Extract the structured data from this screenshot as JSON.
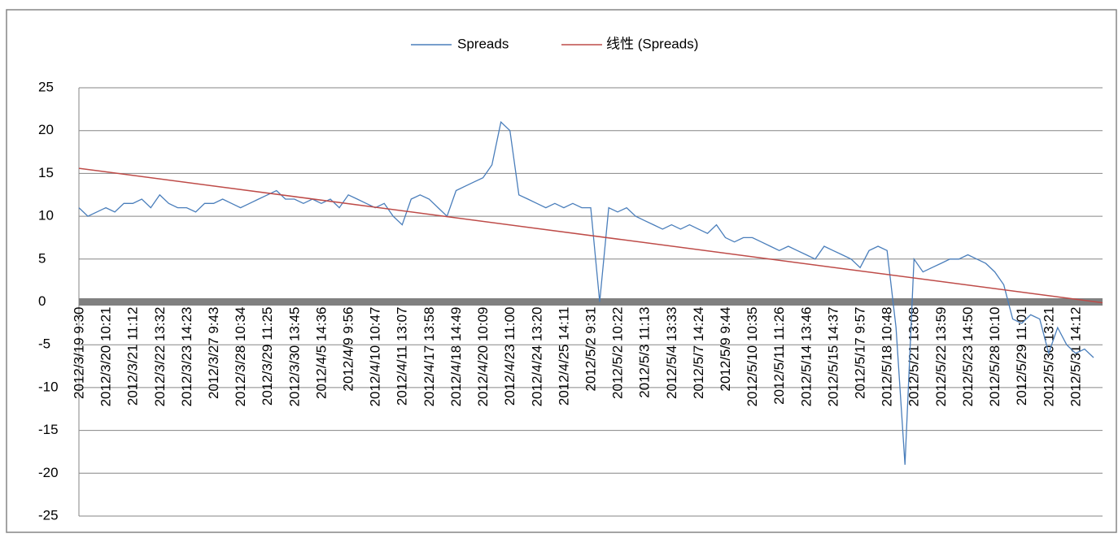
{
  "chart_data": {
    "type": "line",
    "categories": [
      "2012/3/19 9:30",
      null,
      null,
      "2012/3/20 10:21",
      null,
      null,
      "2012/3/21 11:12",
      null,
      null,
      "2012/3/22 13:32",
      null,
      null,
      "2012/3/23 14:23",
      null,
      null,
      "2012/3/27 9:43",
      null,
      null,
      "2012/3/28 10:34",
      null,
      null,
      "2012/3/29 11:25",
      null,
      null,
      "2012/3/30 13:45",
      null,
      null,
      "2012/4/5 14:36",
      null,
      null,
      "2012/4/9 9:56",
      null,
      null,
      "2012/4/10 10:47",
      null,
      null,
      "2012/4/11 13:07",
      null,
      null,
      "2012/4/17 13:58",
      null,
      null,
      "2012/4/18 14:49",
      null,
      null,
      "2012/4/20 10:09",
      null,
      null,
      "2012/4/23 11:00",
      null,
      null,
      "2012/4/24 13:20",
      null,
      null,
      "2012/4/25 14:11",
      null,
      null,
      "2012/5/2 9:31",
      null,
      null,
      "2012/5/2 10:22",
      null,
      null,
      "2012/5/3 11:13",
      null,
      null,
      "2012/5/4 13:33",
      null,
      null,
      "2012/5/7 14:24",
      null,
      null,
      "2012/5/9 9:44",
      null,
      null,
      "2012/5/10 10:35",
      null,
      null,
      "2012/5/11 11:26",
      null,
      null,
      "2012/5/14 13:46",
      null,
      null,
      "2012/5/15 14:37",
      null,
      null,
      "2012/5/17 9:57",
      null,
      null,
      "2012/5/18 10:48",
      null,
      null,
      "2012/5/21 13:08",
      null,
      null,
      "2012/5/22 13:59",
      null,
      null,
      "2012/5/23 14:50",
      null,
      null,
      "2012/5/28 10:10",
      null,
      null,
      "2012/5/29 11:01",
      null,
      null,
      "2012/5/30 13:21",
      null,
      null,
      "2012/5/31 14:12",
      null,
      null
    ],
    "series": [
      {
        "name": "Spreads",
        "color": "#4a7ebb",
        "values": [
          11,
          10,
          10.5,
          11,
          10.5,
          11.5,
          11.5,
          12,
          11,
          12.5,
          11.5,
          11,
          11,
          10.5,
          11.5,
          11.5,
          12,
          11.5,
          11,
          11.5,
          12,
          12.5,
          13,
          12,
          12,
          11.5,
          12,
          11.5,
          12,
          11,
          12.5,
          12,
          11.5,
          11,
          11.5,
          10,
          9,
          12,
          12.5,
          12,
          11,
          10,
          13,
          13.5,
          14,
          14.5,
          16,
          21,
          20,
          12.5,
          12,
          11.5,
          11,
          11.5,
          11,
          11.5,
          11,
          11,
          0,
          11,
          10.5,
          11,
          10,
          9.5,
          9,
          8.5,
          9,
          8.5,
          9,
          8.5,
          8,
          9,
          7.5,
          7,
          7.5,
          7.5,
          7,
          6.5,
          6,
          6.5,
          6,
          5.5,
          5,
          6.5,
          6,
          5.5,
          5,
          4,
          6,
          6.5,
          6,
          -3,
          -19,
          5,
          3.5,
          4,
          4.5,
          5,
          5,
          5.5,
          5,
          4.5,
          3.5,
          2,
          -2,
          -2.5,
          -1.5,
          -2,
          -6,
          -3,
          -5,
          -6,
          -5.5,
          -6.5
        ]
      }
    ],
    "trendline": {
      "name": "线性 (Spreads)",
      "color": "#be4b48",
      "values": [
        15.6,
        -0.1
      ]
    },
    "ylim": [
      -25,
      25
    ],
    "yticks": [
      -25,
      -20,
      -15,
      -10,
      -5,
      0,
      5,
      10,
      15,
      20,
      25
    ],
    "grid": true
  }
}
